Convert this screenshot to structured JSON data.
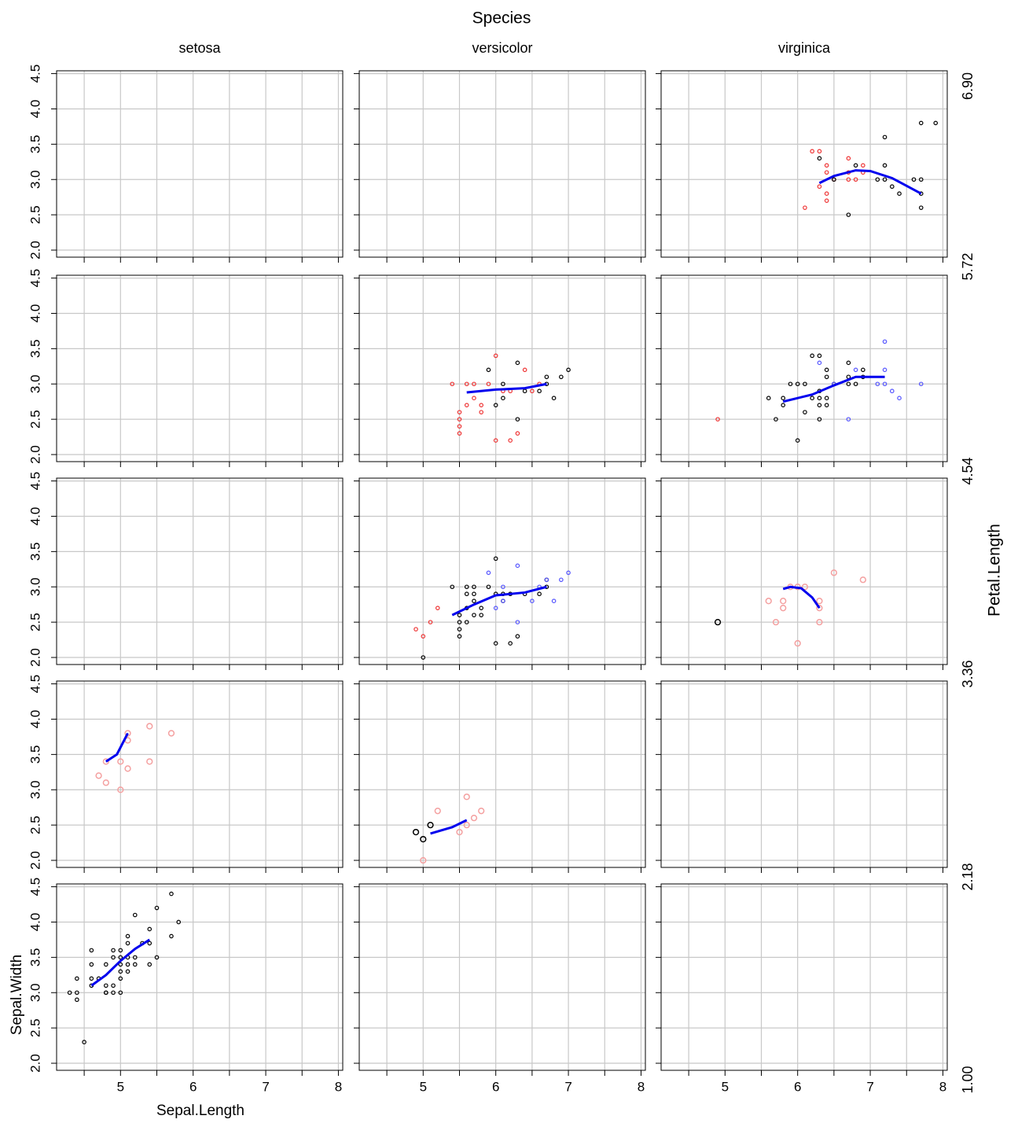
{
  "chart_data": {
    "type": "coplot",
    "title": "Species",
    "columns": [
      "setosa",
      "versicolor",
      "virginica"
    ],
    "row_label": "Petal.Length",
    "row_breaks": [
      {
        "value": 6.9,
        "label": "6.90"
      },
      {
        "value": 5.72,
        "label": "5.72"
      },
      {
        "value": 4.54,
        "label": "4.54"
      },
      {
        "value": 3.36,
        "label": "3.36"
      },
      {
        "value": 2.18,
        "label": "2.18"
      },
      {
        "value": 1,
        "label": "1.00"
      }
    ],
    "x_label": "Sepal.Length",
    "y_label": "Sepal.Width",
    "xlim": [
      4.12,
      8.06
    ],
    "ylim": [
      1.9,
      4.54
    ],
    "xticks": [
      5,
      6,
      7,
      8
    ],
    "minor_xticks": [
      4.5,
      5.5,
      6.5,
      7.5
    ],
    "yticks": [
      {
        "value": 2,
        "label": "2.0"
      },
      2.5,
      {
        "value": 3,
        "label": "3.0"
      },
      3.5,
      {
        "value": 4,
        "label": "4.0"
      },
      4.5
    ],
    "grid": true,
    "smooth_color": "#0000ee",
    "panels": [
      [
        {
          "series": []
        },
        {
          "series": []
        },
        {
          "series": [
            {
              "color": "#ee3333",
              "x": [
                6.2,
                6.3,
                6.4,
                6.4,
                6.3,
                6.4,
                6.4,
                6.1,
                6.5,
                6.7,
                6.7,
                6.7,
                6.8,
                6.9,
                6.9
              ],
              "y": [
                3.4,
                3.4,
                3.2,
                3.1,
                2.9,
                2.8,
                2.7,
                2.6,
                3.0,
                3.3,
                3.1,
                3.0,
                3.0,
                3.2,
                3.1
              ]
            },
            {
              "color": "#000000",
              "x": [
                6.3,
                6.8,
                7.2,
                7.2,
                6.5,
                7.1,
                7.2,
                7.3,
                7.4,
                7.6,
                7.7,
                7.7,
                7.7,
                7.7,
                7.9,
                6.7
              ],
              "y": [
                3.3,
                3.2,
                3.6,
                3.2,
                3.0,
                3.0,
                3.0,
                2.9,
                2.8,
                3.0,
                3.0,
                2.8,
                2.6,
                3.8,
                3.8,
                2.5
              ]
            }
          ],
          "smooth": {
            "x": [
              6.3,
              6.5,
              6.8,
              7.0,
              7.3,
              7.7
            ],
            "y": [
              2.95,
              3.05,
              3.13,
              3.12,
              3.02,
              2.8
            ]
          }
        }
      ],
      [
        {
          "series": []
        },
        {
          "series": [
            {
              "color": "#ee3333",
              "x": [
                5.4,
                5.5,
                5.5,
                5.5,
                5.5,
                5.6,
                5.6,
                5.7,
                5.7,
                5.8,
                5.8,
                5.9,
                6.0,
                6.0,
                6.1,
                6.2,
                6.3,
                6.4,
                6.5,
                6.6,
                6.2
              ],
              "y": [
                3.0,
                2.6,
                2.5,
                2.4,
                2.3,
                2.7,
                3.0,
                2.8,
                3.0,
                2.6,
                2.7,
                3.0,
                3.4,
                2.2,
                2.9,
                2.2,
                2.3,
                3.2,
                2.9,
                3.0,
                2.9
              ]
            },
            {
              "color": "#000000",
              "x": [
                5.9,
                6.0,
                6.1,
                6.1,
                6.3,
                6.3,
                6.4,
                6.6,
                6.7,
                6.7,
                6.8,
                6.9,
                7.0
              ],
              "y": [
                3.2,
                2.7,
                3.0,
                2.8,
                3.3,
                2.5,
                2.9,
                2.9,
                3.1,
                3.0,
                2.8,
                3.1,
                3.2
              ]
            }
          ],
          "smooth": {
            "x": [
              5.6,
              6.0,
              6.4,
              6.7
            ],
            "y": [
              2.88,
              2.92,
              2.94,
              3.0
            ]
          }
        },
        {
          "series": [
            {
              "color": "#ee3333",
              "x": [
                4.9
              ],
              "y": [
                2.5
              ]
            },
            {
              "color": "#000000",
              "x": [
                5.6,
                5.7,
                5.8,
                5.8,
                5.9,
                6.0,
                6.0,
                6.1,
                6.1,
                6.2,
                6.3,
                6.2,
                6.3,
                6.3,
                6.3,
                6.4,
                6.4,
                6.4,
                6.5,
                6.4,
                6.7,
                6.7,
                6.7,
                6.8,
                6.9,
                6.9,
                6.3
              ],
              "y": [
                2.8,
                2.5,
                2.7,
                2.8,
                3.0,
                3.0,
                2.2,
                3.0,
                2.6,
                2.8,
                3.4,
                3.4,
                2.8,
                2.7,
                2.5,
                2.8,
                2.7,
                3.2,
                3.0,
                3.1,
                3.3,
                3.1,
                3.0,
                3.0,
                3.1,
                3.2,
                2.9
              ]
            },
            {
              "color": "#5555ff",
              "x": [
                6.3,
                6.5,
                6.7,
                6.8,
                7.1,
                7.2,
                7.2,
                7.2,
                7.3,
                7.4,
                7.7
              ],
              "y": [
                3.3,
                3.0,
                2.5,
                3.2,
                3.0,
                3.6,
                3.2,
                3.0,
                2.9,
                2.8,
                3.0
              ]
            }
          ],
          "smooth": {
            "x": [
              5.8,
              6.2,
              6.5,
              6.8,
              7.2
            ],
            "y": [
              2.75,
              2.85,
              2.98,
              3.1,
              3.1
            ]
          }
        }
      ],
      [
        {
          "series": []
        },
        {
          "series": [
            {
              "color": "#ee3333",
              "x": [
                4.9,
                5.0,
                5.2,
                5.1
              ],
              "y": [
                2.4,
                2.3,
                2.7,
                2.5
              ]
            },
            {
              "color": "#000000",
              "x": [
                5.0,
                5.4,
                5.5,
                5.5,
                5.5,
                5.5,
                5.6,
                5.6,
                5.6,
                5.6,
                5.7,
                5.7,
                5.7,
                5.7,
                5.8,
                5.8,
                5.9,
                6.0,
                6.0,
                6.0,
                6.1,
                6.1,
                6.2,
                6.2,
                6.3,
                6.4,
                6.6,
                6.7,
                6.7
              ],
              "y": [
                2.0,
                3.0,
                2.5,
                2.4,
                2.3,
                2.6,
                3.0,
                2.9,
                2.7,
                2.5,
                3.0,
                2.9,
                2.8,
                2.6,
                2.7,
                2.6,
                3.0,
                3.4,
                2.9,
                2.2,
                2.8,
                2.9,
                2.9,
                2.2,
                2.3,
                2.9,
                2.9,
                3.0,
                3.1
              ]
            },
            {
              "color": "#5555ff",
              "x": [
                5.9,
                6.0,
                6.1,
                6.3,
                6.3,
                6.1,
                6.5,
                6.6,
                6.7,
                6.8,
                6.9,
                7.0
              ],
              "y": [
                3.2,
                2.7,
                3.0,
                3.3,
                2.5,
                2.8,
                2.8,
                3.0,
                3.1,
                2.8,
                3.1,
                3.2
              ]
            }
          ],
          "smooth": {
            "x": [
              5.4,
              5.7,
              6.0,
              6.4,
              6.7
            ],
            "y": [
              2.6,
              2.75,
              2.88,
              2.92,
              3.0
            ]
          }
        },
        {
          "series": [
            {
              "color": "#000000",
              "x": [
                4.9
              ],
              "y": [
                2.5
              ]
            },
            {
              "color": "#f4a0a0",
              "x": [
                5.6,
                5.7,
                5.8,
                5.8,
                5.9,
                6.0,
                6.0,
                6.1,
                6.3,
                6.3,
                6.3,
                6.5,
                6.9
              ],
              "y": [
                2.8,
                2.5,
                2.8,
                2.7,
                3.0,
                3.0,
                2.2,
                3.0,
                2.8,
                2.7,
                2.5,
                3.2,
                3.1
              ]
            }
          ],
          "smooth": {
            "x": [
              5.8,
              5.9,
              6.05,
              6.2,
              6.3
            ],
            "y": [
              2.97,
              3.0,
              2.98,
              2.85,
              2.7
            ]
          }
        }
      ],
      [
        {
          "series": [
            {
              "color": "#f4a0a0",
              "x": [
                4.8,
                4.7,
                4.8,
                5.0,
                5.0,
                5.1,
                5.1,
                5.4,
                5.4,
                5.7,
                5.1
              ],
              "y": [
                3.4,
                3.2,
                3.1,
                3.4,
                3.0,
                3.8,
                3.3,
                3.9,
                3.4,
                3.8,
                3.7
              ]
            }
          ],
          "smooth": {
            "x": [
              4.8,
              4.95,
              5.1
            ],
            "y": [
              3.4,
              3.5,
              3.8
            ]
          }
        },
        {
          "series": [
            {
              "color": "#000000",
              "x": [
                4.9,
                5.0,
                5.1
              ],
              "y": [
                2.4,
                2.3,
                2.5
              ]
            },
            {
              "color": "#f4a0a0",
              "x": [
                5.0,
                5.2,
                5.5,
                5.6,
                5.6,
                5.7,
                5.8
              ],
              "y": [
                2.0,
                2.7,
                2.4,
                2.9,
                2.5,
                2.6,
                2.7
              ]
            }
          ],
          "smooth": {
            "x": [
              5.1,
              5.4,
              5.6
            ],
            "y": [
              2.38,
              2.47,
              2.57
            ]
          }
        },
        {
          "series": []
        }
      ],
      [
        {
          "series": [
            {
              "color": "#000000",
              "x": [
                4.3,
                4.4,
                4.4,
                4.4,
                4.5,
                4.6,
                4.6,
                4.6,
                4.6,
                4.7,
                4.8,
                4.8,
                4.8,
                4.9,
                4.9,
                4.9,
                5.0,
                5.0,
                5.0,
                5.0,
                5.0,
                5.0,
                5.1,
                5.1,
                5.1,
                5.1,
                5.1,
                5.2,
                5.2,
                5.2,
                5.3,
                5.4,
                5.4,
                5.4,
                5.5,
                5.5,
                5.7,
                5.7,
                5.8,
                4.9,
                4.8
              ],
              "y": [
                3.0,
                3.2,
                3.0,
                2.9,
                2.3,
                3.6,
                3.4,
                3.2,
                3.1,
                3.2,
                3.4,
                3.1,
                3.0,
                3.6,
                3.1,
                3.0,
                3.6,
                3.5,
                3.4,
                3.3,
                3.2,
                3.0,
                3.8,
                3.7,
                3.5,
                3.4,
                3.3,
                4.1,
                3.5,
                3.4,
                3.7,
                3.9,
                3.7,
                3.4,
                4.2,
                3.5,
                4.4,
                3.8,
                4.0,
                3.5,
                3.0
              ]
            }
          ],
          "smooth": {
            "x": [
              4.6,
              4.8,
              5.0,
              5.2,
              5.4
            ],
            "y": [
              3.1,
              3.25,
              3.45,
              3.62,
              3.75
            ]
          }
        },
        {
          "series": []
        },
        {
          "series": []
        }
      ]
    ]
  }
}
